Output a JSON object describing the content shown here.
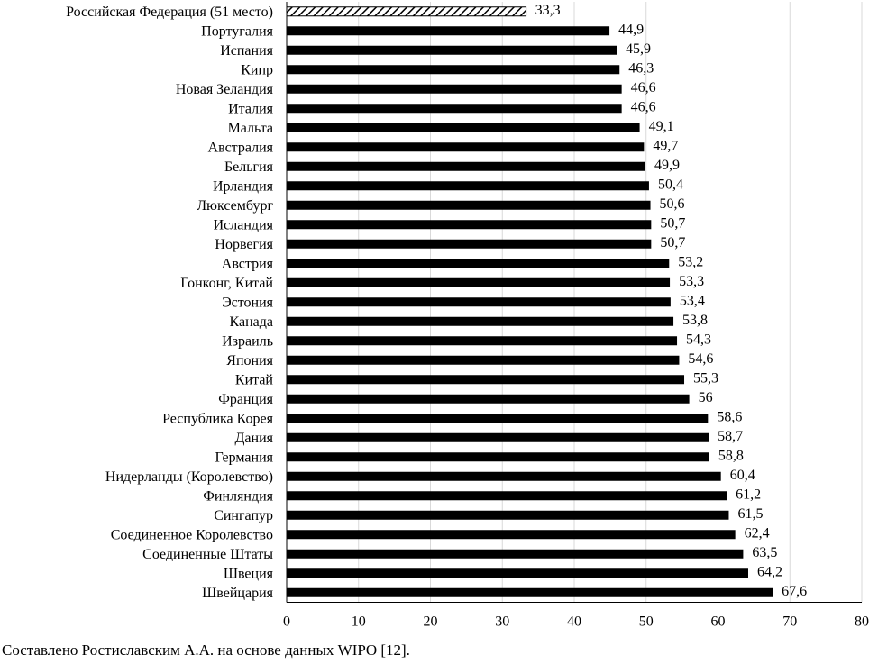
{
  "chart_data": {
    "type": "bar",
    "orientation": "horizontal",
    "categories": [
      "Российская Федерация (51 место)",
      "Португалия",
      "Испания",
      "Кипр",
      "Новая Зеландия",
      "Италия",
      "Мальта",
      "Австралия",
      "Бельгия",
      "Ирландия",
      "Люксембург",
      "Исландия",
      "Норвегия",
      "Австрия",
      "Гонконг, Китай",
      "Эстония",
      "Канада",
      "Израиль",
      "Япония",
      "Китай",
      "Франция",
      "Республика Корея",
      "Дания",
      "Германия",
      "Нидерланды (Королевство)",
      "Финляндия",
      "Сингапур",
      "Соединенное Королевство",
      "Соединенные Штаты",
      "Швеция",
      "Швейцария"
    ],
    "values": [
      33.3,
      44.9,
      45.9,
      46.3,
      46.6,
      46.6,
      49.1,
      49.7,
      49.9,
      50.4,
      50.6,
      50.7,
      50.7,
      53.2,
      53.3,
      53.4,
      53.8,
      54.3,
      54.6,
      55.3,
      56,
      58.6,
      58.7,
      58.8,
      60.4,
      61.2,
      61.5,
      62.4,
      63.5,
      64.2,
      67.6
    ],
    "value_labels": [
      "33,3",
      "44,9",
      "45,9",
      "46,3",
      "46,6",
      "46,6",
      "49,1",
      "49,7",
      "49,9",
      "50,4",
      "50,6",
      "50,7",
      "50,7",
      "53,2",
      "53,3",
      "53,4",
      "53,8",
      "54,3",
      "54,6",
      "55,3",
      "56",
      "58,6",
      "58,7",
      "58,8",
      "60,4",
      "61,2",
      "61,5",
      "62,4",
      "63,5",
      "64,2",
      "67,6"
    ],
    "highlighted_category": "Российская Федерация (51 место)",
    "bar_color": "#000000",
    "highlight_pattern": "diagonal-hatch",
    "xlim": [
      0,
      80
    ],
    "xticks": [
      "0",
      "10",
      "20",
      "30",
      "40",
      "50",
      "60",
      "70",
      "80"
    ],
    "grid": "vertical",
    "grid_color": "#d9d9d9",
    "legend": "none"
  },
  "source_note": "Составлено Ростиславским А.А. на основе данных WIPO [12]."
}
